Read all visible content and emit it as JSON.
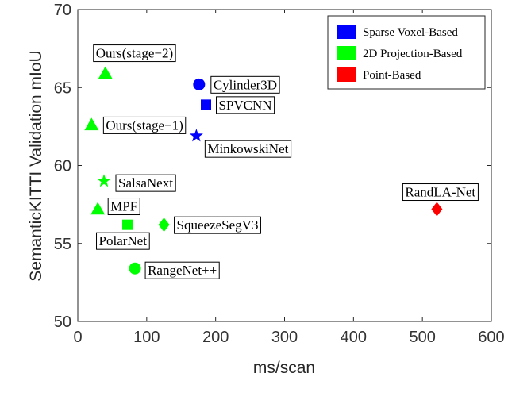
{
  "chart_data": {
    "type": "scatter",
    "xlabel": "ms/scan",
    "ylabel": "SemanticKITTI Validation mIoU",
    "xlim": [
      0,
      600
    ],
    "ylim": [
      50,
      70
    ],
    "xticks": [
      0,
      100,
      200,
      300,
      400,
      500,
      600
    ],
    "yticks": [
      50,
      55,
      60,
      65,
      70
    ],
    "grid": false,
    "legend_position": "top-right",
    "legend": [
      {
        "name": "Sparse Voxel-Based",
        "color": "#0000ff"
      },
      {
        "name": "2D Projection-Based",
        "color": "#00ff00"
      },
      {
        "name": "Point-Based",
        "color": "#ff0000"
      }
    ],
    "points": [
      {
        "label": "Ours(stage−2)",
        "x": 40,
        "y": 65.9,
        "marker": "triangle",
        "group": "2D Projection-Based",
        "color": "#00ff00"
      },
      {
        "label": "Cylinder3D",
        "x": 176,
        "y": 65.2,
        "marker": "circle",
        "group": "Sparse Voxel-Based",
        "color": "#0000ff"
      },
      {
        "label": "SPVCNN",
        "x": 186,
        "y": 63.9,
        "marker": "square",
        "group": "Sparse Voxel-Based",
        "color": "#0000ff"
      },
      {
        "label": "Ours(stage−1)",
        "x": 20,
        "y": 62.6,
        "marker": "triangle",
        "group": "2D Projection-Based",
        "color": "#00ff00"
      },
      {
        "label": "MinkowskiNet",
        "x": 172,
        "y": 61.9,
        "marker": "star",
        "group": "Sparse Voxel-Based",
        "color": "#0000ff"
      },
      {
        "label": "SalsaNext",
        "x": 38,
        "y": 59.0,
        "marker": "star",
        "group": "2D Projection-Based",
        "color": "#00ff00"
      },
      {
        "label": "RandLA-Net",
        "x": 521,
        "y": 57.2,
        "marker": "diamond",
        "group": "Point-Based",
        "color": "#ff0000"
      },
      {
        "label": "MPF",
        "x": 29,
        "y": 57.2,
        "marker": "triangle",
        "group": "2D Projection-Based",
        "color": "#00ff00"
      },
      {
        "label": "SqueezeSegV3",
        "x": 125,
        "y": 56.2,
        "marker": "diamond",
        "group": "2D Projection-Based",
        "color": "#00ff00"
      },
      {
        "label": "PolarNet",
        "x": 72,
        "y": 56.2,
        "marker": "square",
        "group": "2D Projection-Based",
        "color": "#00ff00"
      },
      {
        "label": "RangeNet++",
        "x": 83,
        "y": 53.4,
        "marker": "circle",
        "group": "2D Projection-Based",
        "color": "#00ff00"
      }
    ]
  }
}
